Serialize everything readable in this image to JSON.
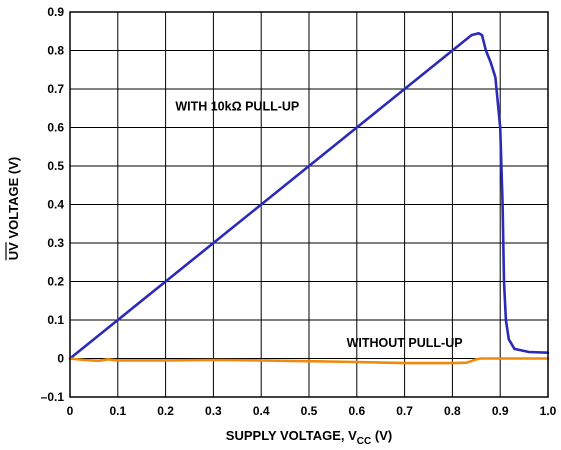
{
  "chart_data": {
    "type": "line",
    "title": "",
    "xlabel": "SUPPLY VOLTAGE, V",
    "xlabel_sub": "CC",
    "xlabel_unit": " (V)",
    "ylabel": "UV VOLTAGE (V)",
    "ylabel_overbar": "UV",
    "ylabel_rest": " VOLTAGE (V)",
    "xlim": [
      0,
      1.0
    ],
    "ylim": [
      -0.1,
      0.9
    ],
    "xticks": [
      "0",
      "0.1",
      "0.2",
      "0.3",
      "0.4",
      "0.5",
      "0.6",
      "0.7",
      "0.8",
      "0.9",
      "1.0"
    ],
    "yticks": [
      "–0.1",
      "0",
      "0.1",
      "0.2",
      "0.3",
      "0.4",
      "0.5",
      "0.6",
      "0.7",
      "0.8",
      "0.9"
    ],
    "grid": true,
    "series": [
      {
        "name": "WITH 10kΩ PULL-UP",
        "color": "#2b2bb8",
        "x": [
          0,
          0.1,
          0.2,
          0.3,
          0.4,
          0.5,
          0.6,
          0.7,
          0.8,
          0.84,
          0.855,
          0.862,
          0.87,
          0.88,
          0.89,
          0.9,
          0.905,
          0.908,
          0.912,
          0.918,
          0.93,
          0.96,
          1.0
        ],
        "values": [
          0,
          0.1,
          0.2,
          0.3,
          0.4,
          0.5,
          0.6,
          0.7,
          0.8,
          0.84,
          0.845,
          0.84,
          0.8,
          0.77,
          0.73,
          0.6,
          0.4,
          0.2,
          0.1,
          0.05,
          0.025,
          0.017,
          0.015
        ]
      },
      {
        "name": "WITHOUT PULL-UP",
        "color": "#f08a0c",
        "x": [
          0,
          0.03,
          0.06,
          0.08,
          0.1,
          0.2,
          0.3,
          0.4,
          0.5,
          0.6,
          0.7,
          0.75,
          0.8,
          0.83,
          0.85,
          0.86,
          0.9,
          1.0
        ],
        "values": [
          0,
          -0.004,
          -0.006,
          -0.002,
          -0.005,
          -0.005,
          -0.004,
          -0.005,
          -0.007,
          -0.009,
          -0.012,
          -0.012,
          -0.012,
          -0.011,
          -0.002,
          0,
          0,
          0
        ]
      }
    ],
    "annotations": [
      {
        "text": "WITH 10kΩ PULL-UP",
        "x": 0.35,
        "y": 0.655
      },
      {
        "text": "WITHOUT PULL-UP",
        "x": 0.7,
        "y": 0.04
      }
    ]
  }
}
